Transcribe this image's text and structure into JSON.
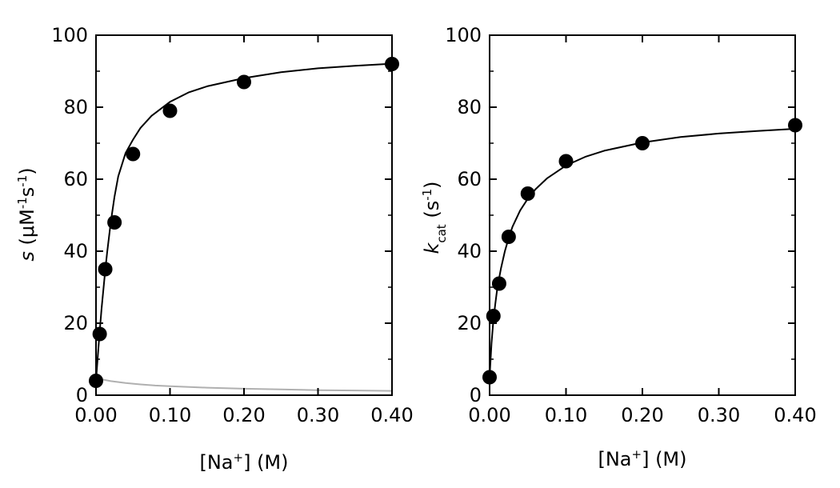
{
  "chart_data": [
    {
      "type": "scatter",
      "ylabel": "s  (μM⁻¹s⁻¹)",
      "ylabel_parts": {
        "symbol": "s",
        "unit_open": "(μM",
        "unit_exp": "-1",
        "unit_mid": "s",
        "unit_exp2": "-1",
        "unit_close": ")"
      },
      "xlabel": "[Na⁺]   (M)",
      "xlabel_parts": {
        "open": "[Na",
        "sup": "+",
        "close": "]   (M)"
      },
      "xlim": [
        0.0,
        0.4
      ],
      "ylim": [
        0,
        100
      ],
      "x_ticks": [
        "0.00",
        "0.10",
        "0.20",
        "0.30",
        "0.40"
      ],
      "x_tick_values": [
        0.0,
        0.1,
        0.2,
        0.3,
        0.4
      ],
      "y_ticks": [
        "0",
        "20",
        "40",
        "60",
        "80",
        "100"
      ],
      "y_tick_values": [
        0,
        20,
        40,
        60,
        80,
        100
      ],
      "grid": false,
      "series": [
        {
          "kind": "points",
          "color": "#000000",
          "x": [
            0.0,
            0.005,
            0.0125,
            0.025,
            0.05,
            0.1,
            0.2,
            0.4
          ],
          "y": [
            4,
            17,
            35,
            48,
            67,
            79,
            87,
            92
          ]
        },
        {
          "kind": "fit",
          "color": "#000000",
          "x": [
            0.0,
            0.0025,
            0.005,
            0.0075,
            0.01,
            0.0125,
            0.015,
            0.02,
            0.025,
            0.03,
            0.04,
            0.05,
            0.06,
            0.075,
            0.1,
            0.125,
            0.15,
            0.2,
            0.25,
            0.3,
            0.35,
            0.4
          ],
          "y": [
            4.0,
            11.0,
            17.7,
            23.9,
            29.5,
            34.8,
            39.6,
            48.1,
            55.1,
            60.8,
            67.3,
            71.0,
            74.2,
            77.6,
            81.5,
            84.1,
            85.8,
            88.1,
            89.7,
            90.8,
            91.5,
            92.1
          ]
        },
        {
          "kind": "fit",
          "color": "#b0b0b0",
          "x": [
            0.0,
            0.005,
            0.01,
            0.02,
            0.04,
            0.06,
            0.08,
            0.1,
            0.15,
            0.2,
            0.25,
            0.3,
            0.35,
            0.4
          ],
          "y": [
            4.0,
            4.5,
            4.3,
            3.9,
            3.4,
            3.0,
            2.7,
            2.5,
            2.1,
            1.8,
            1.6,
            1.4,
            1.3,
            1.2
          ]
        }
      ]
    },
    {
      "type": "scatter",
      "ylabel": "k_cat  (s⁻¹)",
      "ylabel_parts": {
        "symbol": "k",
        "sub": "cat",
        "unit_open": "(s",
        "unit_exp": "-1",
        "unit_close": ")"
      },
      "xlabel": "[Na⁺]   (M)",
      "xlabel_parts": {
        "open": "[Na",
        "sup": "+",
        "close": "]   (M)"
      },
      "xlim": [
        0.0,
        0.4
      ],
      "ylim": [
        0,
        100
      ],
      "x_ticks": [
        "0.00",
        "0.10",
        "0.20",
        "0.30",
        "0.40"
      ],
      "x_tick_values": [
        0.0,
        0.1,
        0.2,
        0.3,
        0.4
      ],
      "y_ticks": [
        "0",
        "20",
        "40",
        "60",
        "80",
        "100"
      ],
      "y_tick_values": [
        0,
        20,
        40,
        60,
        80,
        100
      ],
      "grid": false,
      "series": [
        {
          "kind": "points",
          "color": "#000000",
          "x": [
            0.0,
            0.005,
            0.0125,
            0.025,
            0.05,
            0.1,
            0.2,
            0.4
          ],
          "y": [
            5,
            22,
            31,
            44,
            56,
            65,
            70,
            75
          ]
        },
        {
          "kind": "fit",
          "color": "#000000",
          "x": [
            0.0,
            0.0025,
            0.005,
            0.0075,
            0.01,
            0.0125,
            0.015,
            0.02,
            0.025,
            0.03,
            0.04,
            0.05,
            0.06,
            0.075,
            0.1,
            0.125,
            0.15,
            0.2,
            0.25,
            0.3,
            0.35,
            0.4
          ],
          "y": [
            5.0,
            14.5,
            21.0,
            25.5,
            29.5,
            32.5,
            35.3,
            40.0,
            43.7,
            46.8,
            51.3,
            54.6,
            57.2,
            60.2,
            63.8,
            66.2,
            67.9,
            70.2,
            71.7,
            72.7,
            73.4,
            74.0
          ]
        }
      ]
    }
  ]
}
